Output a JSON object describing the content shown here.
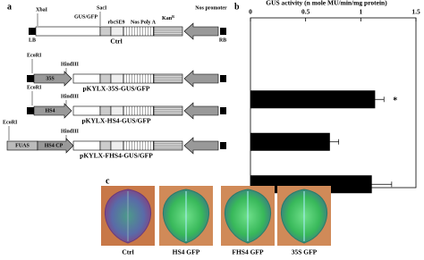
{
  "panel_a": {
    "label": "a",
    "map_labels": {
      "xbai": "XbaI",
      "saci": "SacI",
      "gus_gfp": "GUS/GFP",
      "rbcse9": "rbcSE9",
      "nos_poly_a": "Nos Poly A",
      "kan": "Kan",
      "kan_sup": "R",
      "nos_promoter": "Nos promoter",
      "lb": "LB",
      "rb": "RB"
    },
    "constructs": [
      {
        "name": "Ctrl"
      },
      {
        "name": "pKYLX-35S-GUS/GFP",
        "sites": [
          "EcoRI",
          "HindIII"
        ],
        "promoter": [
          "35S"
        ]
      },
      {
        "name": "pKYLX-HS4-GUS/GFP",
        "sites": [
          "EcoRI",
          "HindIII"
        ],
        "promoter": [
          "HS4"
        ]
      },
      {
        "name": "pKYLX-FHS4-GUS/GFP",
        "sites": [
          "EcoRI",
          "HindIII"
        ],
        "promoter": [
          "FUAS",
          "HS4 CP"
        ]
      }
    ]
  },
  "chart_data": {
    "type": "bar",
    "orientation": "horizontal",
    "panel_label": "b",
    "title": "GUS activity (n mole MU/min/mg protein)",
    "categories": [
      null,
      null,
      null,
      null
    ],
    "values": [
      0,
      1.13,
      0.72,
      1.1
    ],
    "errors": [
      0,
      0.08,
      0.08,
      0.18
    ],
    "value_annotations": [
      null,
      "*",
      null,
      null
    ],
    "color": "#000000",
    "xlim": [
      0,
      1.5
    ],
    "xticks": [
      0,
      0.5,
      1,
      1.5
    ]
  },
  "panel_c": {
    "label": "c",
    "images": [
      "Ctrl",
      "HS4 GFP",
      "FHS4 GFP",
      "35S GFP"
    ]
  }
}
